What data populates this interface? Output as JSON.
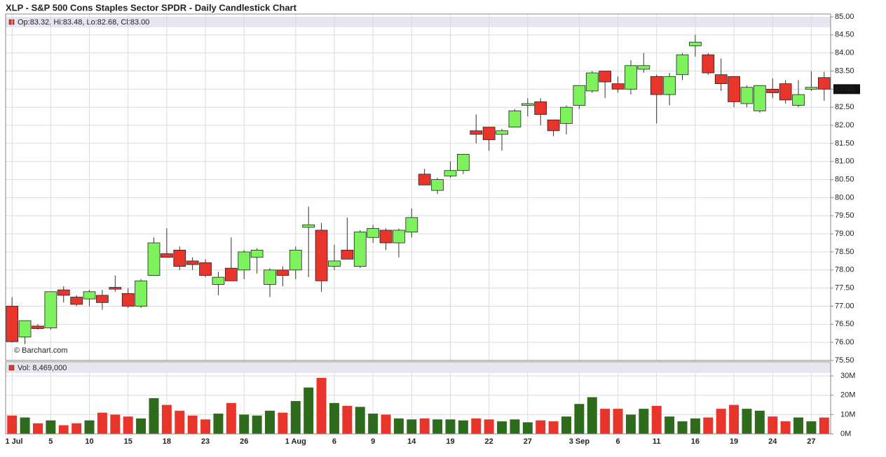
{
  "chart_data": [
    {
      "type": "candlestick",
      "title": "XLP - S&P 500 Cons Staples Sector SPDR - Daily Candlestick Chart",
      "legend": "Op:83.32, Hi:83.48, Lo:82.68, Cl:83.00",
      "watermark": "© Barchart.com",
      "open": [
        77.0,
        76.15,
        76.45,
        76.4,
        77.45,
        77.25,
        77.2,
        77.3,
        77.52,
        77.35,
        77.0,
        77.85,
        78.45,
        78.55,
        78.25,
        78.2,
        77.6,
        78.05,
        78.0,
        78.35,
        77.6,
        78.0,
        78.0,
        79.18,
        79.1,
        78.1,
        78.55,
        78.1,
        78.9,
        79.1,
        78.75,
        79.05,
        80.65,
        80.2,
        80.6,
        80.75,
        81.85,
        81.95,
        81.75,
        81.95,
        82.55,
        82.65,
        82.15,
        82.05,
        82.55,
        82.95,
        83.5,
        83.15,
        83.0,
        83.55,
        83.35,
        82.85,
        83.4,
        84.2,
        83.95,
        83.4,
        83.35,
        82.6,
        82.4,
        83.0,
        83.15,
        82.55,
        83.0,
        83.32
      ],
      "high": [
        77.25,
        76.6,
        76.5,
        77.4,
        77.55,
        77.3,
        77.45,
        77.45,
        77.85,
        77.5,
        77.75,
        78.9,
        79.15,
        78.65,
        78.35,
        78.3,
        77.95,
        78.9,
        78.55,
        78.6,
        78.05,
        78.1,
        78.65,
        79.75,
        79.3,
        78.7,
        79.45,
        79.1,
        79.25,
        79.15,
        79.15,
        79.7,
        80.8,
        80.55,
        81.0,
        81.2,
        82.3,
        81.95,
        81.9,
        82.45,
        82.75,
        82.75,
        82.15,
        82.55,
        83.1,
        83.5,
        83.5,
        83.35,
        83.8,
        84.0,
        83.4,
        83.45,
        84.0,
        84.5,
        84.0,
        83.85,
        83.35,
        83.1,
        83.1,
        83.3,
        83.25,
        83.25,
        83.5,
        83.48
      ],
      "low": [
        76.0,
        75.95,
        76.35,
        76.35,
        77.1,
        77.0,
        77.0,
        76.9,
        77.4,
        76.95,
        76.95,
        77.85,
        78.35,
        78.0,
        78.0,
        77.8,
        77.3,
        77.7,
        77.75,
        77.9,
        77.25,
        77.55,
        77.75,
        77.8,
        77.4,
        78.0,
        78.3,
        78.05,
        78.75,
        78.55,
        78.35,
        78.9,
        80.35,
        80.1,
        80.55,
        80.65,
        81.5,
        81.3,
        81.3,
        81.95,
        82.25,
        82.0,
        81.7,
        81.75,
        82.45,
        82.9,
        82.75,
        82.9,
        82.85,
        83.45,
        82.05,
        82.55,
        83.25,
        83.9,
        83.4,
        82.95,
        82.5,
        82.5,
        82.35,
        82.75,
        82.6,
        82.5,
        82.95,
        82.68
      ],
      "close": [
        76.02,
        76.6,
        76.38,
        77.4,
        77.3,
        77.05,
        77.4,
        77.1,
        77.47,
        77.0,
        77.7,
        78.75,
        78.35,
        78.1,
        78.15,
        77.85,
        77.8,
        77.7,
        78.5,
        78.55,
        78.0,
        77.85,
        78.55,
        79.25,
        77.7,
        78.25,
        78.3,
        79.05,
        79.15,
        78.75,
        79.1,
        79.45,
        80.35,
        80.5,
        80.75,
        81.2,
        81.75,
        81.6,
        81.85,
        82.4,
        82.6,
        82.3,
        81.85,
        82.5,
        83.1,
        83.45,
        83.2,
        83.0,
        83.65,
        83.65,
        82.85,
        83.35,
        83.95,
        84.3,
        83.45,
        83.15,
        82.65,
        83.05,
        83.1,
        82.9,
        82.7,
        82.85,
        83.05,
        83.0
      ],
      "ylim": [
        75.5,
        85
      ],
      "yticks": [
        {
          "value": 75.5,
          "label": "75.50"
        },
        {
          "value": 76,
          "label": "76.00"
        },
        {
          "value": 76.5,
          "label": "76.50"
        },
        {
          "value": 77,
          "label": "77.00"
        },
        {
          "value": 77.5,
          "label": "77.50"
        },
        {
          "value": 78,
          "label": "78.00"
        },
        {
          "value": 78.5,
          "label": "78.50"
        },
        {
          "value": 79,
          "label": "79.00"
        },
        {
          "value": 79.5,
          "label": "79.50"
        },
        {
          "value": 80,
          "label": "80.00"
        },
        {
          "value": 80.5,
          "label": "80.50"
        },
        {
          "value": 81,
          "label": "81.00"
        },
        {
          "value": 81.5,
          "label": "81.50"
        },
        {
          "value": 82,
          "label": "82.00"
        },
        {
          "value": 82.5,
          "label": "82.50"
        },
        {
          "value": 83,
          "label": "83.00"
        },
        {
          "value": 83.5,
          "label": "83.50"
        },
        {
          "value": 84,
          "label": "84.00"
        },
        {
          "value": 84.5,
          "label": "84.50"
        },
        {
          "value": 85,
          "label": "85.00"
        }
      ],
      "up_color": "#7ef25c",
      "down_color": "#e8352b",
      "grid": true
    },
    {
      "type": "bar",
      "legend": "Vol: 8,469,000",
      "categories": [
        "1 Jul",
        null,
        null,
        "5",
        null,
        null,
        "10",
        null,
        null,
        "15",
        null,
        null,
        "18",
        null,
        null,
        "23",
        null,
        null,
        "26",
        null,
        null,
        null,
        "1 Aug",
        null,
        null,
        "6",
        null,
        null,
        "9",
        null,
        null,
        "14",
        null,
        null,
        "19",
        null,
        null,
        "22",
        null,
        null,
        "27",
        null,
        null,
        null,
        "3 Sep",
        null,
        null,
        "6",
        null,
        null,
        "11",
        null,
        null,
        "16",
        null,
        null,
        "19",
        null,
        null,
        "24",
        null,
        null,
        "27",
        null
      ],
      "values": [
        9.5,
        8.5,
        5.5,
        7,
        4.5,
        5.5,
        7,
        11,
        10,
        9,
        8,
        18.5,
        15,
        12,
        9.5,
        7.5,
        10.5,
        16,
        10,
        9.5,
        12,
        11,
        17,
        24,
        29,
        16,
        14.5,
        14,
        10.5,
        10,
        8,
        7.5,
        8,
        7.5,
        7.5,
        7,
        8,
        7.5,
        6.5,
        7.5,
        6,
        7,
        6.5,
        9,
        15.5,
        19,
        13,
        13,
        10,
        13,
        14.5,
        9,
        6.5,
        8,
        8.5,
        13,
        15,
        13,
        12,
        9,
        6.5,
        8.5,
        6.5,
        8.469
      ],
      "ylim": [
        0,
        37.3
      ],
      "yticks": [
        {
          "value": 0,
          "label": "0M"
        },
        {
          "value": 10,
          "label": "10M"
        },
        {
          "value": 20,
          "label": "20M"
        },
        {
          "value": 30,
          "label": "30M"
        }
      ],
      "up_color": "#2e6b1c",
      "down_color": "#e8352b",
      "grid": true
    }
  ]
}
